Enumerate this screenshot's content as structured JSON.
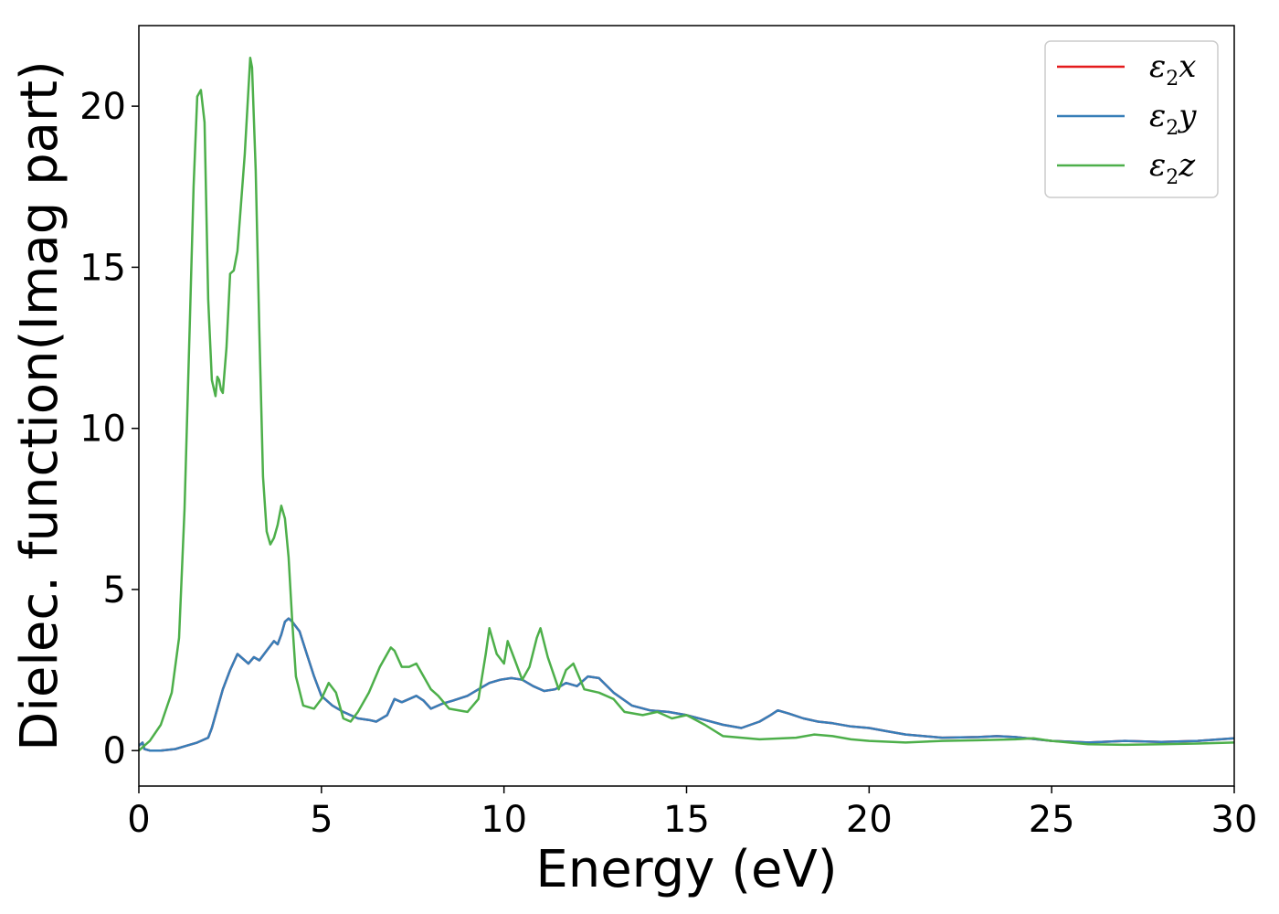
{
  "chart_data": {
    "type": "line",
    "xlabel": "Energy (eV)",
    "ylabel": "Dielec. function(Imag part)",
    "xlim": [
      0,
      30
    ],
    "ylim": [
      -1.1,
      22.5
    ],
    "xticks": [
      0,
      5,
      10,
      15,
      20,
      25,
      30
    ],
    "yticks": [
      0,
      5,
      10,
      15,
      20
    ],
    "xtick_labels": [
      "0",
      "5",
      "10",
      "15",
      "20",
      "25",
      "30"
    ],
    "ytick_labels": [
      "0",
      "5",
      "10",
      "15",
      "20"
    ],
    "grid": false,
    "legend_position": "top-right",
    "series": [
      {
        "name": "ε2x",
        "legend_base": "ε",
        "legend_sub": "2",
        "legend_tail": "x",
        "color": "#e41a1c",
        "x": [
          0,
          0.1,
          0.15,
          0.3,
          0.6,
          1.0,
          1.3,
          1.6,
          1.9,
          2.0,
          2.1,
          2.3,
          2.5,
          2.7,
          2.9,
          3.0,
          3.15,
          3.3,
          3.5,
          3.7,
          3.8,
          3.9,
          4.0,
          4.1,
          4.2,
          4.4,
          4.6,
          4.8,
          5.0,
          5.3,
          5.6,
          6.0,
          6.3,
          6.5,
          6.8,
          7.0,
          7.2,
          7.4,
          7.6,
          7.8,
          8.0,
          8.3,
          8.6,
          9.0,
          9.3,
          9.6,
          9.9,
          10.2,
          10.5,
          10.8,
          11.1,
          11.4,
          11.7,
          12.0,
          12.3,
          12.6,
          13.0,
          13.5,
          14.0,
          14.5,
          15.0,
          15.5,
          16.0,
          16.5,
          17.0,
          17.3,
          17.5,
          17.8,
          18.2,
          18.6,
          19.0,
          19.5,
          20.0,
          20.5,
          21.0,
          22.0,
          23.0,
          23.5,
          24.0,
          25.0,
          26.0,
          27.0,
          28.0,
          29.0,
          30.0
        ],
        "y": [
          0.15,
          0.25,
          0.05,
          0.0,
          0.0,
          0.05,
          0.15,
          0.25,
          0.4,
          0.7,
          1.1,
          1.9,
          2.5,
          3.0,
          2.8,
          2.7,
          2.9,
          2.8,
          3.1,
          3.4,
          3.3,
          3.6,
          4.0,
          4.1,
          4.0,
          3.7,
          3.0,
          2.3,
          1.7,
          1.4,
          1.2,
          1.0,
          0.95,
          0.9,
          1.1,
          1.6,
          1.5,
          1.6,
          1.7,
          1.55,
          1.3,
          1.45,
          1.55,
          1.7,
          1.9,
          2.1,
          2.2,
          2.25,
          2.2,
          2.0,
          1.85,
          1.9,
          2.1,
          2.0,
          2.3,
          2.25,
          1.8,
          1.4,
          1.25,
          1.2,
          1.1,
          0.95,
          0.8,
          0.7,
          0.9,
          1.1,
          1.25,
          1.15,
          1.0,
          0.9,
          0.85,
          0.75,
          0.7,
          0.6,
          0.5,
          0.4,
          0.42,
          0.45,
          0.42,
          0.3,
          0.25,
          0.3,
          0.27,
          0.3,
          0.38
        ]
      },
      {
        "name": "ε2y",
        "legend_base": "ε",
        "legend_sub": "2",
        "legend_tail": "y",
        "color": "#377eb8",
        "x": [
          0,
          0.1,
          0.15,
          0.3,
          0.6,
          1.0,
          1.3,
          1.6,
          1.9,
          2.0,
          2.1,
          2.3,
          2.5,
          2.7,
          2.9,
          3.0,
          3.15,
          3.3,
          3.5,
          3.7,
          3.8,
          3.9,
          4.0,
          4.1,
          4.2,
          4.4,
          4.6,
          4.8,
          5.0,
          5.3,
          5.6,
          6.0,
          6.3,
          6.5,
          6.8,
          7.0,
          7.2,
          7.4,
          7.6,
          7.8,
          8.0,
          8.3,
          8.6,
          9.0,
          9.3,
          9.6,
          9.9,
          10.2,
          10.5,
          10.8,
          11.1,
          11.4,
          11.7,
          12.0,
          12.3,
          12.6,
          13.0,
          13.5,
          14.0,
          14.5,
          15.0,
          15.5,
          16.0,
          16.5,
          17.0,
          17.3,
          17.5,
          17.8,
          18.2,
          18.6,
          19.0,
          19.5,
          20.0,
          20.5,
          21.0,
          22.0,
          23.0,
          23.5,
          24.0,
          25.0,
          26.0,
          27.0,
          28.0,
          29.0,
          30.0
        ],
        "y": [
          0.15,
          0.25,
          0.05,
          0.0,
          0.0,
          0.05,
          0.15,
          0.25,
          0.4,
          0.7,
          1.1,
          1.9,
          2.5,
          3.0,
          2.8,
          2.7,
          2.9,
          2.8,
          3.1,
          3.4,
          3.3,
          3.6,
          4.0,
          4.1,
          4.0,
          3.7,
          3.0,
          2.3,
          1.7,
          1.4,
          1.2,
          1.0,
          0.95,
          0.9,
          1.1,
          1.6,
          1.5,
          1.6,
          1.7,
          1.55,
          1.3,
          1.45,
          1.55,
          1.7,
          1.9,
          2.1,
          2.2,
          2.25,
          2.2,
          2.0,
          1.85,
          1.9,
          2.1,
          2.0,
          2.3,
          2.25,
          1.8,
          1.4,
          1.25,
          1.2,
          1.1,
          0.95,
          0.8,
          0.7,
          0.9,
          1.1,
          1.25,
          1.15,
          1.0,
          0.9,
          0.85,
          0.75,
          0.7,
          0.6,
          0.5,
          0.4,
          0.42,
          0.45,
          0.42,
          0.3,
          0.25,
          0.3,
          0.27,
          0.3,
          0.38
        ]
      },
      {
        "name": "ε2z",
        "legend_base": "ε",
        "legend_sub": "2",
        "legend_tail": "z",
        "color": "#4daf4a",
        "x": [
          0,
          0.3,
          0.6,
          0.9,
          1.1,
          1.25,
          1.4,
          1.5,
          1.6,
          1.7,
          1.8,
          1.9,
          2.0,
          2.1,
          2.15,
          2.2,
          2.25,
          2.3,
          2.4,
          2.5,
          2.6,
          2.7,
          2.8,
          2.9,
          3.0,
          3.05,
          3.1,
          3.2,
          3.3,
          3.4,
          3.5,
          3.6,
          3.7,
          3.8,
          3.9,
          4.0,
          4.1,
          4.2,
          4.3,
          4.5,
          4.8,
          5.0,
          5.2,
          5.4,
          5.6,
          5.8,
          6.0,
          6.3,
          6.6,
          6.9,
          7.0,
          7.2,
          7.4,
          7.6,
          7.8,
          8.0,
          8.2,
          8.5,
          9.0,
          9.3,
          9.5,
          9.6,
          9.8,
          10.0,
          10.1,
          10.3,
          10.5,
          10.7,
          10.9,
          11.0,
          11.2,
          11.5,
          11.7,
          11.9,
          12.2,
          12.6,
          13.0,
          13.3,
          13.8,
          14.2,
          14.6,
          15.0,
          15.5,
          16.0,
          17.0,
          18.0,
          18.5,
          19.0,
          19.5,
          20.0,
          21.0,
          22.0,
          23.0,
          24.0,
          24.5,
          25.0,
          26.0,
          27.0,
          28.0,
          29.0,
          30.0
        ],
        "y": [
          0.0,
          0.3,
          0.8,
          1.8,
          3.5,
          7.5,
          13.5,
          17.5,
          20.3,
          20.5,
          19.5,
          14.0,
          11.5,
          11.0,
          11.6,
          11.5,
          11.2,
          11.1,
          12.5,
          14.8,
          14.9,
          15.5,
          17.0,
          18.5,
          20.5,
          21.5,
          21.2,
          18.0,
          13.0,
          8.5,
          6.8,
          6.4,
          6.6,
          7.0,
          7.6,
          7.2,
          6.0,
          4.0,
          2.3,
          1.4,
          1.3,
          1.6,
          2.1,
          1.8,
          1.0,
          0.9,
          1.2,
          1.8,
          2.6,
          3.2,
          3.1,
          2.6,
          2.6,
          2.7,
          2.3,
          1.9,
          1.7,
          1.3,
          1.2,
          1.6,
          3.0,
          3.8,
          3.0,
          2.7,
          3.4,
          2.8,
          2.2,
          2.6,
          3.5,
          3.8,
          2.9,
          1.9,
          2.5,
          2.7,
          1.9,
          1.8,
          1.6,
          1.2,
          1.1,
          1.2,
          1.0,
          1.1,
          0.8,
          0.45,
          0.35,
          0.4,
          0.5,
          0.45,
          0.35,
          0.3,
          0.25,
          0.3,
          0.32,
          0.35,
          0.38,
          0.3,
          0.2,
          0.18,
          0.2,
          0.22,
          0.25
        ]
      }
    ]
  }
}
